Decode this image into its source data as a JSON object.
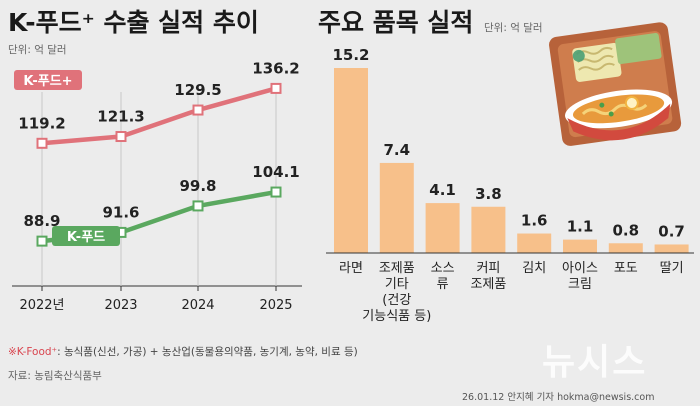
{
  "left_title": "K-푸드⁺ 수출 실적 추이",
  "left_unit": "단위: 억 달러",
  "right_title": "주요 품목 실적",
  "right_unit": "단위: 억 달러",
  "footnote_prefix": "※K-Food⁺",
  "footnote_text": ": 농식품(신선, 가공) + 농산업(동물용의약품, 농기계, 농약, 비료 등)",
  "source": "자료: 농림축산식품부",
  "credit": "26.01.12 안지혜 기자 hokma@newsis.com",
  "watermark": "뉴시스",
  "colors": {
    "kfood_plus": "#e0727a",
    "kfood": "#5aa85f",
    "bar": "#f7c08a",
    "background": "#ececec"
  },
  "chart_data": [
    {
      "type": "line",
      "title": "K-푸드⁺ 수출 실적 추이",
      "unit": "억 달러",
      "x": [
        "2022년",
        "2023",
        "2024",
        "2025"
      ],
      "ylim": [
        75,
        145
      ],
      "series": [
        {
          "name": "K-푸드+",
          "values": [
            119.2,
            121.3,
            129.5,
            136.2
          ],
          "labels": [
            "119.2",
            "121.3",
            "129.5",
            "136.2"
          ]
        },
        {
          "name": "K-푸드",
          "values": [
            88.9,
            91.6,
            99.8,
            104.1
          ],
          "labels": [
            "88.9",
            "91.6",
            "99.8",
            "104.1"
          ]
        }
      ]
    },
    {
      "type": "bar",
      "title": "주요 품목 실적",
      "unit": "억 달러",
      "ylim": [
        0,
        16
      ],
      "categories": [
        [
          "라면"
        ],
        [
          "조제품",
          "기타",
          "(건강",
          "기능식품 등)"
        ],
        [
          "소스",
          "류"
        ],
        [
          "커피",
          "조제품"
        ],
        [
          "김치"
        ],
        [
          "아이스",
          "크림"
        ],
        [
          "포도"
        ],
        [
          "딸기"
        ]
      ],
      "values": [
        15.2,
        7.4,
        4.1,
        3.8,
        1.6,
        1.1,
        0.8,
        0.7
      ],
      "labels": [
        "15.2",
        "7.4",
        "4.1",
        "3.8",
        "1.6",
        "1.1",
        "0.8",
        "0.7"
      ]
    }
  ]
}
